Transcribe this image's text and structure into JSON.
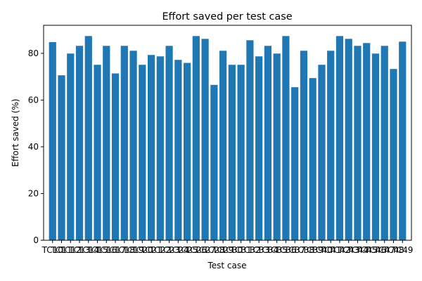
{
  "chart_data": {
    "type": "bar",
    "title": "Effort saved per test case",
    "xlabel": "Test case",
    "ylabel": "Effort saved (%)",
    "ylim": [
      0,
      92
    ],
    "yticks": [
      0,
      20,
      40,
      60,
      80
    ],
    "grid": false,
    "color": "#1f77b4",
    "categories": [
      "TC10",
      "TC11",
      "TC12",
      "TC13",
      "TC14",
      "TC15",
      "TC16",
      "TC17",
      "TC18",
      "TC19",
      "TC20",
      "TC21",
      "TC22",
      "TC23",
      "TC24",
      "TC25",
      "TC26",
      "TC27",
      "TC28",
      "TC29",
      "TC30",
      "TC31",
      "TC32",
      "TC33",
      "TC34",
      "TC35",
      "TC36",
      "TC37",
      "TC38",
      "TC39",
      "TC40",
      "TC41",
      "TC42",
      "TC43",
      "TC44",
      "TC45",
      "TC46",
      "TC47",
      "TC48",
      "TC49"
    ],
    "values": [
      84.8,
      70.6,
      79.9,
      83.2,
      87.4,
      75.1,
      83.2,
      71.4,
      83.2,
      81.1,
      75.1,
      79.3,
      78.7,
      83.2,
      77.2,
      75.9,
      87.4,
      86.2,
      66.5,
      81.1,
      75.1,
      75.1,
      85.6,
      78.7,
      83.2,
      79.9,
      87.4,
      65.5,
      81.1,
      69.4,
      75.1,
      81.1,
      87.4,
      86.2,
      83.2,
      84.4,
      79.9,
      83.2,
      73.3,
      85.0
    ]
  }
}
